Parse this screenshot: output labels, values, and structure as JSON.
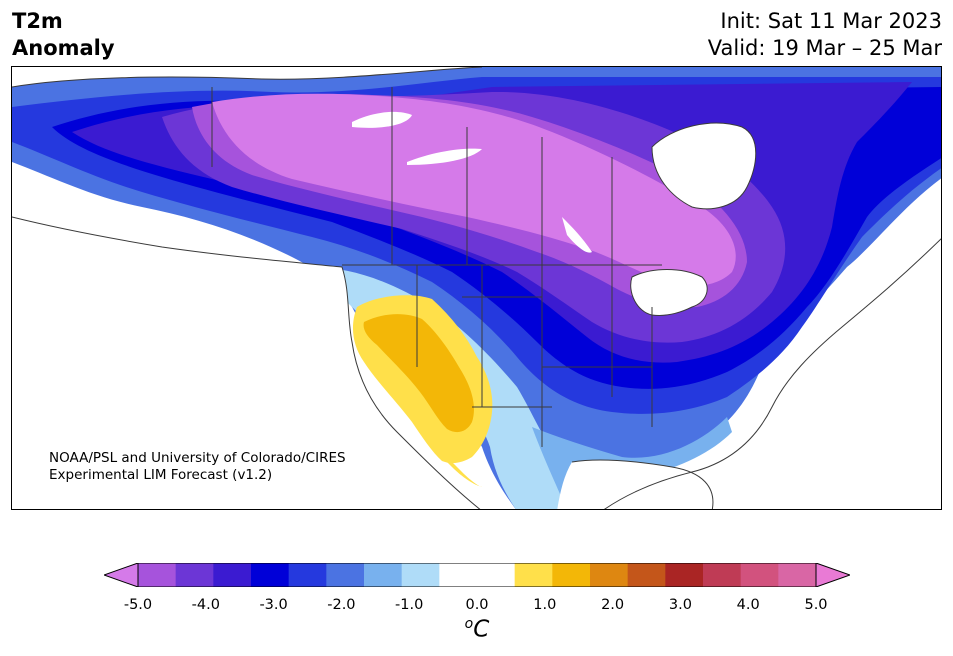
{
  "title": {
    "line1": "T2m",
    "line2": "Anomaly"
  },
  "dates": {
    "init": "Init: Sat 11 Mar 2023",
    "valid": "Valid: 19 Mar – 25 Mar"
  },
  "credit": {
    "line1": "NOAA/PSL and University of Colorado/CIRES",
    "line2": "Experimental LIM Forecast (v1.2)"
  },
  "colorbar": {
    "colors": [
      "#d57ae9",
      "#a653dc",
      "#6c36d6",
      "#3b1bd1",
      "#0000d8",
      "#2539de",
      "#4b73e2",
      "#78b1ee",
      "#afdcf8",
      "#ffffff",
      "#ffffff",
      "#ffe04a",
      "#f3b707",
      "#de8711",
      "#c4561a",
      "#aa2524",
      "#bf3b55",
      "#d2527e",
      "#d966a5",
      "#e97ad5"
    ],
    "ticks": [
      "-5.0",
      "-4.0",
      "-3.0",
      "-2.0",
      "-1.0",
      "0.0",
      "1.0",
      "2.0",
      "3.0",
      "4.0",
      "5.0"
    ],
    "unit_prefix": "o",
    "unit": "C"
  },
  "map_colors": {
    "ocean": "#ffffff",
    "c5": "#d57ae9",
    "c45": "#a653dc",
    "c4": "#6c36d6",
    "c35": "#3b1bd1",
    "c3": "#0000d8",
    "c25": "#2539de",
    "c2": "#4b73e2",
    "c15": "#78b1ee",
    "c1": "#afdcf8",
    "w1": "#ffe04a",
    "w15": "#f3b707"
  }
}
